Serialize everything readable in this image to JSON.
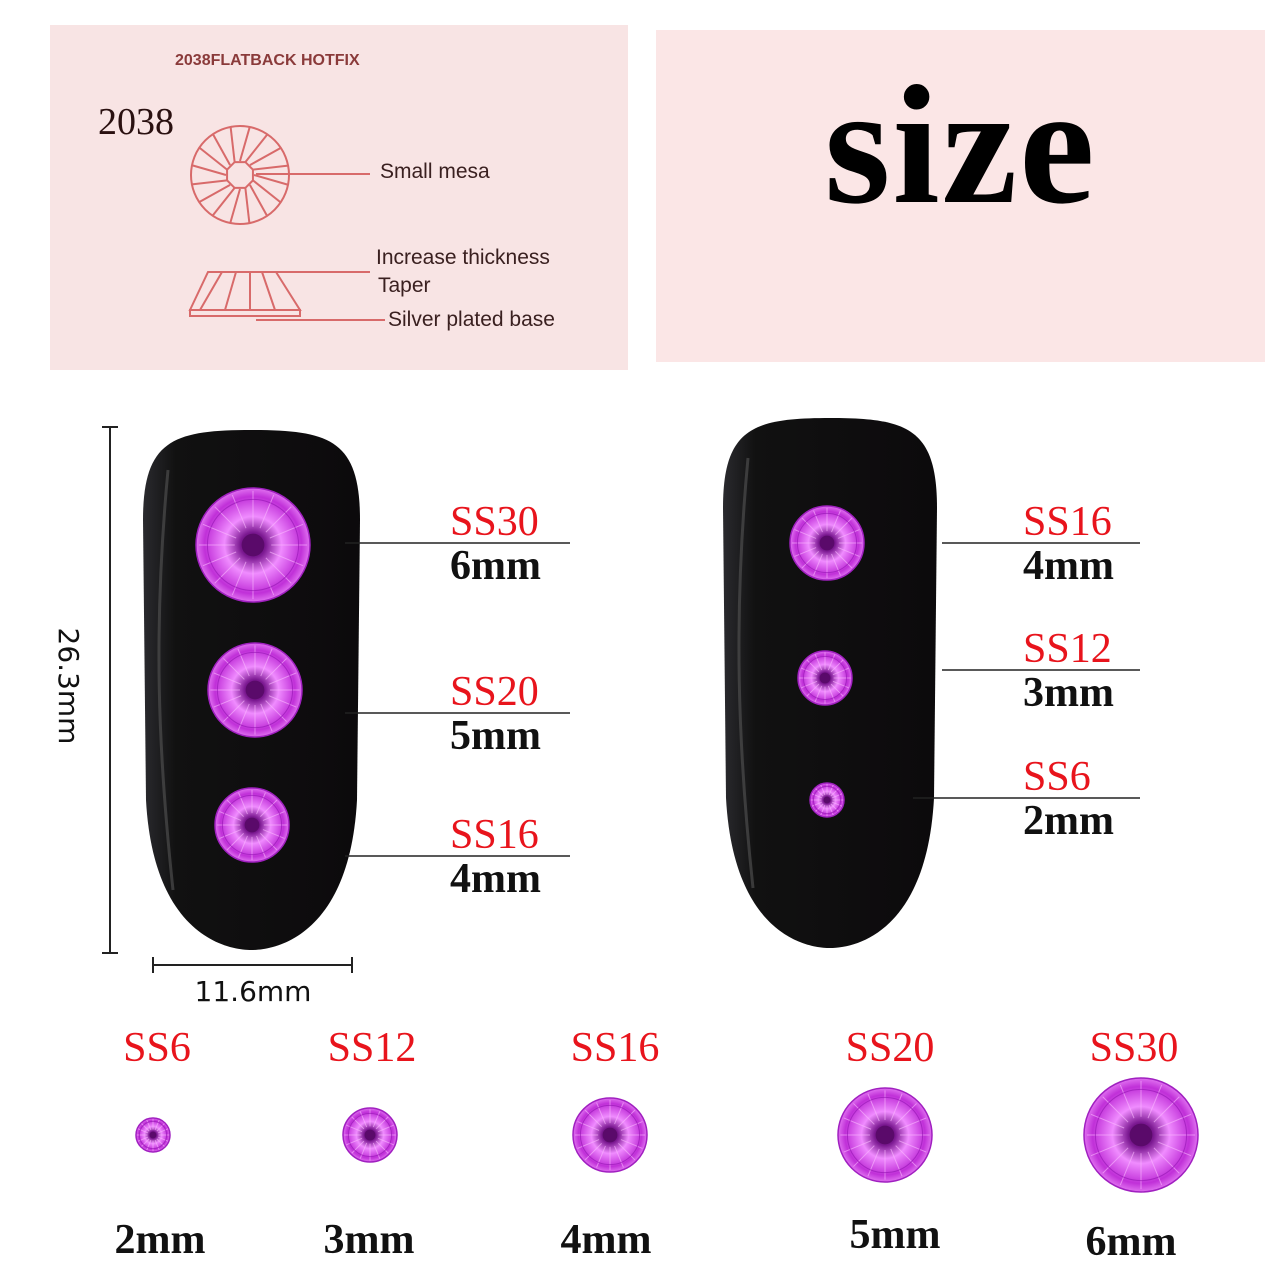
{
  "diagram": {
    "heading": "2038FLATBACK HOTFIX",
    "model": "2038",
    "labels": [
      "Small mesa",
      "Increase thickness",
      "Taper",
      "Silver plated base"
    ],
    "line_color": "#d86a6a"
  },
  "title": "size",
  "dimensions": {
    "height": "26.3mm",
    "width": "11.6mm"
  },
  "colors": {
    "gem": "#c030d8",
    "gem_light": "#f08cff",
    "gem_dark": "#5a0a6a",
    "label_red": "#e8141c",
    "nail": "#0c0a0c"
  },
  "nail_left": [
    {
      "code": "SS30",
      "size": "6mm",
      "mm": 6
    },
    {
      "code": "SS20",
      "size": "5mm",
      "mm": 5
    },
    {
      "code": "SS16",
      "size": "4mm",
      "mm": 4
    }
  ],
  "nail_right": [
    {
      "code": "SS16",
      "size": "4mm",
      "mm": 4
    },
    {
      "code": "SS12",
      "size": "3mm",
      "mm": 3
    },
    {
      "code": "SS6",
      "size": "2mm",
      "mm": 2
    }
  ],
  "bottom_row": [
    {
      "code": "SS6",
      "size": "2mm",
      "mm": 2
    },
    {
      "code": "SS12",
      "size": "3mm",
      "mm": 3
    },
    {
      "code": "SS16",
      "size": "4mm",
      "mm": 4
    },
    {
      "code": "SS20",
      "size": "5mm",
      "mm": 5
    },
    {
      "code": "SS30",
      "size": "6mm",
      "mm": 6
    }
  ]
}
